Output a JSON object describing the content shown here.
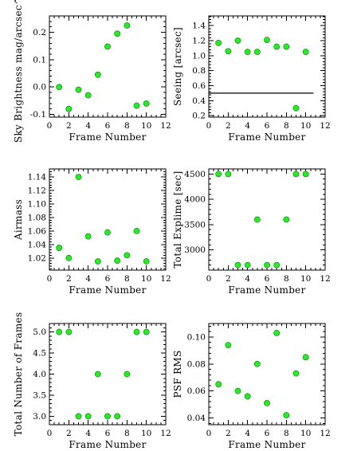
{
  "chart_data": [
    {
      "type": "scatter",
      "title": "",
      "xlabel": "Frame Number",
      "ylabel": "Sky Brightness mag/arcsec^2",
      "xlim": [
        0,
        12
      ],
      "ylim": [
        -0.11,
        0.26
      ],
      "xticks": [
        0,
        2,
        4,
        6,
        8,
        10,
        12
      ],
      "yticks": [
        -0.1,
        0.0,
        0.1,
        0.2
      ],
      "yticklabels": [
        "-0.1",
        "0.0",
        "0.1",
        "0.2"
      ],
      "x": [
        1,
        2,
        3,
        4,
        5,
        6,
        7,
        8,
        9,
        10
      ],
      "y": [
        0.0,
        -0.08,
        -0.01,
        -0.03,
        0.045,
        0.148,
        0.195,
        0.225,
        -0.068,
        -0.06
      ],
      "point_color": "#22ee22"
    },
    {
      "type": "scatter",
      "title": "",
      "xlabel": "Frame Number",
      "ylabel": "Seeing [arcsec]",
      "xlim": [
        0,
        12
      ],
      "ylim": [
        0.18,
        1.53
      ],
      "xticks": [
        0,
        2,
        4,
        6,
        8,
        10,
        12
      ],
      "yticks": [
        0.2,
        0.4,
        0.6,
        0.8,
        1.0,
        1.2,
        1.4
      ],
      "yticklabels": [
        "0.2",
        "0.4",
        "0.6",
        "0.8",
        "1.0",
        "1.2",
        "1.4"
      ],
      "x": [
        1,
        2,
        3,
        4,
        5,
        6,
        7,
        8,
        9,
        10
      ],
      "y": [
        1.17,
        1.06,
        1.2,
        1.05,
        1.05,
        1.21,
        1.12,
        1.12,
        0.3,
        1.05
      ],
      "reference_line": {
        "y": 0.5,
        "x_from": 0,
        "x_to": 10.8
      },
      "point_color": "#22ee22"
    },
    {
      "type": "scatter",
      "title": "",
      "xlabel": "Frame Number",
      "ylabel": "Airmass",
      "xlim": [
        0,
        12
      ],
      "ylim": [
        1.002,
        1.152
      ],
      "xticks": [
        0,
        2,
        4,
        6,
        8,
        10,
        12
      ],
      "yticks": [
        1.02,
        1.04,
        1.06,
        1.08,
        1.1,
        1.12,
        1.14
      ],
      "yticklabels": [
        "1.02",
        "1.04",
        "1.06",
        "1.08",
        "1.10",
        "1.12",
        "1.14"
      ],
      "x": [
        1,
        2,
        3,
        4,
        5,
        6,
        7,
        8,
        9,
        10
      ],
      "y": [
        1.035,
        1.02,
        1.14,
        1.052,
        1.015,
        1.058,
        1.016,
        1.024,
        1.06,
        1.015
      ],
      "point_color": "#22ee22"
    },
    {
      "type": "scatter",
      "title": "",
      "xlabel": "Frame Number",
      "ylabel": "Total Explime [sec]",
      "xlim": [
        0,
        12
      ],
      "ylim": [
        2600,
        4600
      ],
      "xticks": [
        0,
        2,
        4,
        6,
        8,
        10,
        12
      ],
      "yticks": [
        3000,
        3500,
        4000,
        4500
      ],
      "yticklabels": [
        "3000",
        "3500",
        "4000",
        "4500"
      ],
      "x": [
        1,
        2,
        3,
        4,
        5,
        6,
        7,
        8,
        9,
        10
      ],
      "y": [
        4500,
        4500,
        2700,
        2700,
        3600,
        2700,
        2700,
        3600,
        4500,
        4500
      ],
      "point_color": "#22ee22"
    },
    {
      "type": "scatter",
      "title": "",
      "xlabel": "Frame Number",
      "ylabel": "Total Number of Frames",
      "xlim": [
        0,
        12
      ],
      "ylim": [
        2.8,
        5.2
      ],
      "xticks": [
        0,
        2,
        4,
        6,
        8,
        10,
        12
      ],
      "yticks": [
        3.0,
        3.5,
        4.0,
        4.5,
        5.0
      ],
      "yticklabels": [
        "3.0",
        "3.5",
        "4.0",
        "4.5",
        "5.0"
      ],
      "x": [
        1,
        2,
        3,
        4,
        5,
        6,
        7,
        8,
        9,
        10
      ],
      "y": [
        5,
        5,
        3,
        3,
        4,
        3,
        3,
        4,
        5,
        5
      ],
      "point_color": "#22ee22"
    },
    {
      "type": "scatter",
      "title": "",
      "xlabel": "Frame Number",
      "ylabel": "PSF RMS",
      "xlim": [
        0,
        12
      ],
      "ylim": [
        0.035,
        0.11
      ],
      "xticks": [
        0,
        2,
        4,
        6,
        8,
        10,
        12
      ],
      "yticks": [
        0.04,
        0.06,
        0.08,
        0.1
      ],
      "yticklabels": [
        "0.04",
        "0.06",
        "0.08",
        "0.10"
      ],
      "x": [
        1,
        2,
        3,
        4,
        5,
        6,
        7,
        8,
        9,
        10
      ],
      "y": [
        0.065,
        0.094,
        0.06,
        0.056,
        0.08,
        0.051,
        0.103,
        0.042,
        0.073,
        0.085
      ],
      "point_color": "#22ee22"
    }
  ]
}
